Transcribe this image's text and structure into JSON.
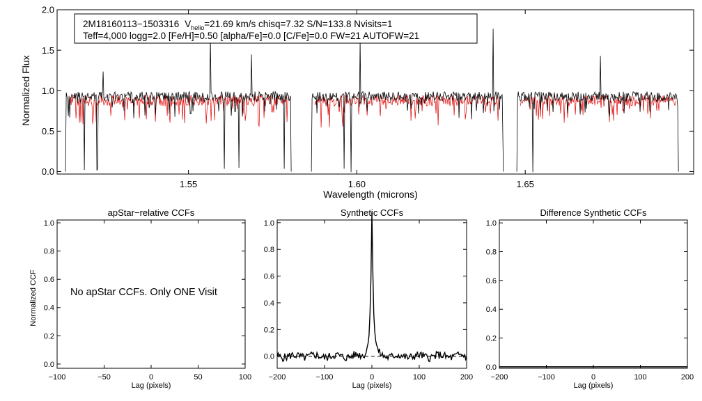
{
  "chart_data": [
    {
      "type": "line",
      "id": "spectrum",
      "title": "",
      "xlabel": "Wavelength (microns)",
      "ylabel": "Normalized Flux",
      "xlim": [
        1.511,
        1.7
      ],
      "ylim": [
        -0.03,
        2.0
      ],
      "x_ticks": [
        1.55,
        1.6,
        1.65
      ],
      "x_tick_labels": [
        "1.55",
        "1.60",
        "1.65"
      ],
      "y_ticks": [
        0.0,
        0.5,
        1.0,
        1.5,
        2.0
      ],
      "y_tick_labels": [
        "0.0",
        "0.5",
        "1.0",
        "1.5",
        "2.0"
      ],
      "detector_chips": [
        [
          1.5135,
          1.5805
        ],
        [
          1.5865,
          1.6435
        ],
        [
          1.6475,
          1.6955
        ]
      ],
      "series": [
        {
          "name": "observed",
          "color": "#000000",
          "level": 0.93
        },
        {
          "name": "synthetic",
          "color": "#e00000",
          "level": 0.88
        }
      ],
      "annotation": {
        "star_id": "2M18160113−1503316",
        "v_prefix": "V",
        "v_sub": "helio",
        "v_value": "=21.69 km/s  chisq=7.32  S/N=133.8  Nvisits=1",
        "line2": "Teff=4,000 logg=2.0 [Fe/H]=0.50 [alpha/Fe]=0.0 [C/Fe]=0.0 FW=21 AUTOFW=21"
      }
    },
    {
      "type": "line",
      "id": "apstar-ccf",
      "title": "apStar−relative CCFs",
      "xlabel": "Lag (pixels)",
      "ylabel": "Normalized CCF",
      "xlim": [
        -100,
        100
      ],
      "ylim": [
        -0.03,
        1.02
      ],
      "x_ticks": [
        -100,
        -50,
        0,
        50,
        100
      ],
      "x_tick_labels": [
        "−100",
        "−50",
        "0",
        "50",
        "100"
      ],
      "y_ticks": [
        0.0,
        0.2,
        0.4,
        0.6,
        0.8,
        1.0
      ],
      "y_tick_labels": [
        "0.0",
        "0.2",
        "0.4",
        "0.6",
        "0.8",
        "1.0"
      ],
      "message": "No apStar CCFs.  Only ONE Visit",
      "series": []
    },
    {
      "type": "line",
      "id": "synthetic-ccf",
      "title": "Synthetic CCFs",
      "xlabel": "Lag (pixels)",
      "ylabel": "",
      "xlim": [
        -200,
        200
      ],
      "ylim": [
        -0.09,
        1.02
      ],
      "x_ticks": [
        -200,
        -100,
        0,
        100,
        200
      ],
      "x_tick_labels": [
        "−200",
        "−100",
        "0",
        "100",
        "200"
      ],
      "y_ticks": [
        0.0,
        0.2,
        0.4,
        0.6,
        0.8,
        1.0
      ],
      "y_tick_labels": [
        "0.0",
        "0.2",
        "0.4",
        "0.6",
        "0.8",
        "1.0"
      ],
      "series": [
        {
          "name": "ccf",
          "color": "#000000",
          "peak_x": 0,
          "peak_y": 1.0,
          "baseline": 0.0
        },
        {
          "name": "zero-line",
          "color": "#000000",
          "style": "dashed",
          "y": 0.0
        }
      ]
    },
    {
      "type": "line",
      "id": "difference-ccf",
      "title": "Difference Synthetic CCFs",
      "xlabel": "Lag (pixels)",
      "ylabel": "",
      "xlim": [
        -200,
        200
      ],
      "ylim": [
        -0.01,
        1.02
      ],
      "x_ticks": [
        -200,
        -100,
        0,
        100,
        200
      ],
      "x_tick_labels": [
        "−200",
        "−100",
        "0",
        "100",
        "200"
      ],
      "y_ticks": [
        0.0,
        0.2,
        0.4,
        0.6,
        0.8,
        1.0
      ],
      "y_tick_labels": [
        "0.0",
        "0.2",
        "0.4",
        "0.6",
        "0.8",
        "1.0"
      ],
      "series": [
        {
          "name": "difference",
          "color": "#000000",
          "y": 0.0
        }
      ]
    }
  ]
}
